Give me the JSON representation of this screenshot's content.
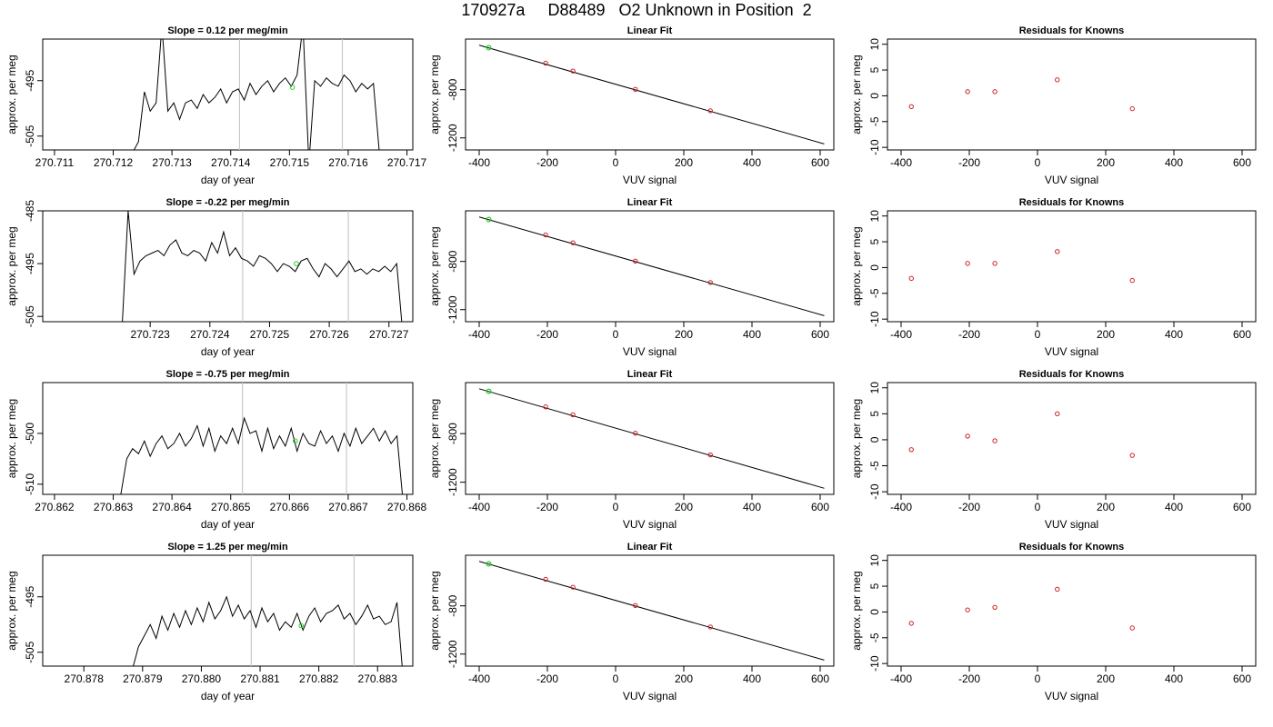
{
  "page_title": "170927a     D88489   O2 Unknown in Position  2",
  "chart_data": [
    {
      "row": 1,
      "panels": [
        {
          "type": "line",
          "title": "Slope =  0.12  per meg/min",
          "xlabel": "day of year",
          "ylabel": "approx. per meg",
          "xlim": [
            270.7108,
            270.7171
          ],
          "ylim": [
            -507.5,
            -487.5
          ],
          "xticks": [
            "270.711",
            "270.712",
            "270.713",
            "270.714",
            "270.715",
            "270.716",
            "270.717"
          ],
          "yticks": [
            "-495",
            "-505"
          ],
          "vlines": [
            270.71415,
            270.7159
          ],
          "marker": [
            270.71505,
            -496.2
          ],
          "x": [
            270.71233,
            270.71243,
            270.71253,
            270.71263,
            270.71273,
            270.71283,
            270.71293,
            270.71303,
            270.71313,
            270.71323,
            270.71333,
            270.71343,
            270.71353,
            270.71363,
            270.71373,
            270.71383,
            270.71393,
            270.71403,
            270.71413,
            270.71423,
            270.71433,
            270.71443,
            270.71453,
            270.71463,
            270.71473,
            270.71483,
            270.71493,
            270.71503,
            270.71513,
            270.71523,
            270.71533,
            270.71543,
            270.71553,
            270.71563,
            270.71573,
            270.71583,
            270.71593,
            270.71603,
            270.71613,
            270.71623,
            270.71633,
            270.71643,
            270.71653
          ],
          "y": [
            -508.0,
            -506.0,
            -497.0,
            -500.5,
            -499.0,
            -485.0,
            -500.5,
            -499.0,
            -502.0,
            -499.0,
            -498.5,
            -500.0,
            -497.5,
            -499.0,
            -498.0,
            -496.5,
            -499.0,
            -497.0,
            -496.5,
            -498.5,
            -495.5,
            -497.5,
            -496.0,
            -495.0,
            -497.0,
            -495.5,
            -494.5,
            -496.0,
            -494.0,
            -485.0,
            -510.0,
            -495.0,
            -496.0,
            -494.5,
            -495.5,
            -496.0,
            -494.0,
            -495.0,
            -497.0,
            -495.5,
            -496.5,
            -495.5,
            -508.0
          ]
        },
        {
          "type": "scatter",
          "title": "Linear Fit",
          "xlabel": "VUV signal",
          "ylabel": "approx. per meg",
          "xlim": [
            -440,
            640
          ],
          "ylim": [
            -1300,
            -380
          ],
          "xticks": [
            "-400",
            "-200",
            "0",
            "200",
            "400",
            "600"
          ],
          "yticks": [
            "-800",
            "-1200"
          ],
          "fit_line": [
            [
              -400,
              -431
            ],
            [
              612,
              -1250
            ]
          ],
          "known_points": [
            [
              -205,
              -580
            ],
            [
              -125,
              -645
            ],
            [
              58,
              -797
            ],
            [
              278,
              -975
            ]
          ],
          "unknown_point": [
            -372,
            -452
          ]
        },
        {
          "type": "scatter",
          "title": "Residuals for Knowns",
          "xlabel": "VUV signal",
          "ylabel": "approx. per meg",
          "xlim": [
            -440,
            640
          ],
          "ylim": [
            -10.5,
            11
          ],
          "xticks": [
            "-400",
            "-200",
            "0",
            "200",
            "400",
            "600"
          ],
          "yticks": [
            "10",
            "5",
            "0",
            "-5",
            "-10"
          ],
          "points": [
            [
              -370,
              -2.1
            ],
            [
              -205,
              0.8
            ],
            [
              -125,
              0.8
            ],
            [
              58,
              3.1
            ],
            [
              278,
              -2.5
            ]
          ]
        }
      ]
    },
    {
      "row": 2,
      "panels": [
        {
          "type": "line",
          "title": "Slope =  -0.22  per meg/min",
          "xlabel": "day of year",
          "ylabel": "approx. per meg",
          "xlim": [
            270.7212,
            270.7274
          ],
          "ylim": [
            -506,
            -485
          ],
          "xticks": [
            "270.723",
            "270.724",
            "270.725",
            "270.726",
            "270.727"
          ],
          "yticks": [
            "-485",
            "-495",
            "-505"
          ],
          "vlines": [
            270.72455,
            270.72632
          ],
          "marker": [
            270.72545,
            -495.0
          ],
          "x": [
            270.72253,
            270.72263,
            270.72273,
            270.72283,
            270.72293,
            270.72303,
            270.72313,
            270.72323,
            270.72333,
            270.72343,
            270.72353,
            270.72363,
            270.72373,
            270.72383,
            270.72393,
            270.72403,
            270.72413,
            270.72423,
            270.72433,
            270.72443,
            270.72453,
            270.72463,
            270.72473,
            270.72483,
            270.72493,
            270.72503,
            270.72513,
            270.72523,
            270.72533,
            270.72543,
            270.72553,
            270.72563,
            270.72573,
            270.72583,
            270.72593,
            270.72603,
            270.72613,
            270.72623,
            270.72633,
            270.72643,
            270.72653,
            270.72663,
            270.72673,
            270.72683,
            270.72693,
            270.72703,
            270.72713,
            270.72723
          ],
          "y": [
            -507.0,
            -485.0,
            -497.0,
            -494.5,
            -493.5,
            -493.0,
            -492.5,
            -493.5,
            -491.5,
            -490.5,
            -493.0,
            -493.5,
            -492.5,
            -493.0,
            -494.5,
            -491.0,
            -493.0,
            -489.0,
            -493.5,
            -492.0,
            -494.0,
            -494.5,
            -495.5,
            -493.5,
            -494.0,
            -495.0,
            -496.5,
            -495.0,
            -495.5,
            -496.5,
            -494.5,
            -494.0,
            -496.0,
            -497.5,
            -495.0,
            -496.0,
            -497.5,
            -496.0,
            -494.5,
            -496.5,
            -496.0,
            -497.0,
            -496.0,
            -496.5,
            -495.5,
            -496.5,
            -495.0,
            -508.0
          ]
        },
        {
          "type": "scatter",
          "title": "Linear Fit",
          "xlabel": "VUV signal",
          "ylabel": "approx. per meg",
          "xlim": [
            -440,
            640
          ],
          "ylim": [
            -1300,
            -380
          ],
          "xticks": [
            "-400",
            "-200",
            "0",
            "200",
            "400",
            "600"
          ],
          "yticks": [
            "-800",
            "-1200"
          ],
          "fit_line": [
            [
              -400,
              -431
            ],
            [
              612,
              -1250
            ]
          ],
          "known_points": [
            [
              -205,
              -580
            ],
            [
              -125,
              -645
            ],
            [
              58,
              -797
            ],
            [
              278,
              -975
            ]
          ],
          "unknown_point": [
            -372,
            -452
          ]
        },
        {
          "type": "scatter",
          "title": "Residuals for Knowns",
          "xlabel": "VUV signal",
          "ylabel": "approx. per meg",
          "xlim": [
            -440,
            640
          ],
          "ylim": [
            -10.5,
            11
          ],
          "xticks": [
            "-400",
            "-200",
            "0",
            "200",
            "400",
            "600"
          ],
          "yticks": [
            "10",
            "5",
            "0",
            "-5",
            "-10"
          ],
          "points": [
            [
              -370,
              -2.1
            ],
            [
              -205,
              0.8
            ],
            [
              -125,
              0.8
            ],
            [
              58,
              3.1
            ],
            [
              278,
              -2.5
            ]
          ]
        }
      ]
    },
    {
      "row": 3,
      "panels": [
        {
          "type": "line",
          "title": "Slope =  -0.75  per meg/min",
          "xlabel": "day of year",
          "ylabel": "approx. per meg",
          "xlim": [
            270.8618,
            270.8681
          ],
          "ylim": [
            -512,
            -490
          ],
          "xticks": [
            "270.862",
            "270.863",
            "270.864",
            "270.865",
            "270.866",
            "270.867",
            "270.868"
          ],
          "yticks": [
            "-500",
            "-510"
          ],
          "vlines": [
            270.8652,
            270.86697
          ],
          "marker": [
            270.8661,
            -501.5
          ],
          "x": [
            270.86313,
            270.86323,
            270.86333,
            270.86343,
            270.86353,
            270.86363,
            270.86373,
            270.86383,
            270.86393,
            270.86403,
            270.86413,
            270.86423,
            270.86433,
            270.86443,
            270.86453,
            270.86463,
            270.86473,
            270.86483,
            270.86493,
            270.86503,
            270.86513,
            270.86523,
            270.86533,
            270.86543,
            270.86553,
            270.86563,
            270.86573,
            270.86583,
            270.86593,
            270.86603,
            270.86613,
            270.86623,
            270.86633,
            270.86643,
            270.86653,
            270.86663,
            270.86673,
            270.86683,
            270.86693,
            270.86703,
            270.86713,
            270.86723,
            270.86733,
            270.86743,
            270.86753,
            270.86763,
            270.86773,
            270.86783,
            270.86793
          ],
          "y": [
            -512.0,
            -505.0,
            -503.0,
            -504.0,
            -501.5,
            -504.5,
            -502.0,
            -500.5,
            -503.0,
            -502.0,
            -500.0,
            -502.5,
            -501.0,
            -498.5,
            -502.5,
            -499.0,
            -503.5,
            -500.5,
            -502.0,
            -499.0,
            -502.0,
            -497.0,
            -500.0,
            -499.5,
            -503.5,
            -499.0,
            -503.0,
            -500.5,
            -502.5,
            -499.0,
            -503.5,
            -500.0,
            -502.0,
            -502.5,
            -499.5,
            -502.0,
            -500.5,
            -503.5,
            -500.0,
            -502.5,
            -499.0,
            -502.0,
            -500.5,
            -499.0,
            -501.5,
            -499.5,
            -502.0,
            -500.5,
            -513.0
          ]
        },
        {
          "type": "scatter",
          "title": "Linear Fit",
          "xlabel": "VUV signal",
          "ylabel": "approx. per meg",
          "xlim": [
            -440,
            640
          ],
          "ylim": [
            -1300,
            -380
          ],
          "xticks": [
            "-400",
            "-200",
            "0",
            "200",
            "400",
            "600"
          ],
          "yticks": [
            "-800",
            "-1200"
          ],
          "fit_line": [
            [
              -400,
              -431
            ],
            [
              612,
              -1250
            ]
          ],
          "known_points": [
            [
              -205,
              -580
            ],
            [
              -125,
              -645
            ],
            [
              58,
              -797
            ],
            [
              278,
              -975
            ]
          ],
          "unknown_point": [
            -372,
            -452
          ]
        },
        {
          "type": "scatter",
          "title": "Residuals for Knowns",
          "xlabel": "VUV signal",
          "ylabel": "approx. per meg",
          "xlim": [
            -440,
            640
          ],
          "ylim": [
            -10.5,
            11
          ],
          "xticks": [
            "-400",
            "-200",
            "0",
            "200",
            "400",
            "600"
          ],
          "yticks": [
            "10",
            "5",
            "0",
            "-5",
            "-10"
          ],
          "points": [
            [
              -370,
              -1.9
            ],
            [
              -205,
              0.7
            ],
            [
              -125,
              -0.2
            ],
            [
              58,
              5.0
            ],
            [
              278,
              -3.0
            ]
          ]
        }
      ]
    },
    {
      "row": 4,
      "panels": [
        {
          "type": "line",
          "title": "Slope =  1.25  per meg/min",
          "xlabel": "day of year",
          "ylabel": "approx. per meg",
          "xlim": [
            270.8773,
            270.8836
          ],
          "ylim": [
            -507.5,
            -487.5
          ],
          "xticks": [
            "270.878",
            "270.879",
            "270.880",
            "270.881",
            "270.882",
            "270.883"
          ],
          "yticks": [
            "-495",
            "-505"
          ],
          "vlines": [
            270.88085,
            270.8826
          ],
          "marker": [
            270.8817,
            -500.2
          ],
          "x": [
            270.87883,
            270.87893,
            270.87903,
            270.87913,
            270.87923,
            270.87933,
            270.87943,
            270.87953,
            270.87963,
            270.87973,
            270.87983,
            270.87993,
            270.88003,
            270.88013,
            270.88023,
            270.88033,
            270.88043,
            270.88053,
            270.88063,
            270.88073,
            270.88083,
            270.88093,
            270.88103,
            270.88113,
            270.88123,
            270.88133,
            270.88143,
            270.88153,
            270.88163,
            270.88173,
            270.88183,
            270.88193,
            270.88203,
            270.88213,
            270.88223,
            270.88233,
            270.88243,
            270.88253,
            270.88263,
            270.88273,
            270.88283,
            270.88293,
            270.88303,
            270.88313,
            270.88323,
            270.88333,
            270.88343
          ],
          "y": [
            -508.0,
            -504.0,
            -502.0,
            -500.0,
            -502.5,
            -498.5,
            -501.0,
            -498.0,
            -500.5,
            -497.5,
            -500.0,
            -497.0,
            -499.5,
            -496.0,
            -499.0,
            -497.5,
            -495.0,
            -498.5,
            -496.5,
            -499.0,
            -497.5,
            -500.5,
            -497.0,
            -499.5,
            -498.0,
            -501.0,
            -499.5,
            -500.5,
            -498.0,
            -501.0,
            -498.5,
            -497.0,
            -499.5,
            -498.0,
            -497.5,
            -496.5,
            -499.0,
            -498.0,
            -500.0,
            -498.5,
            -496.5,
            -499.0,
            -498.5,
            -500.0,
            -499.5,
            -496.0,
            -509.0
          ]
        },
        {
          "type": "scatter",
          "title": "Linear Fit",
          "xlabel": "VUV signal",
          "ylabel": "approx. per meg",
          "xlim": [
            -440,
            640
          ],
          "ylim": [
            -1300,
            -380
          ],
          "xticks": [
            "-400",
            "-200",
            "0",
            "200",
            "400",
            "600"
          ],
          "yticks": [
            "-800",
            "-1200"
          ],
          "fit_line": [
            [
              -400,
              -431
            ],
            [
              612,
              -1250
            ]
          ],
          "known_points": [
            [
              -205,
              -580
            ],
            [
              -125,
              -645
            ],
            [
              58,
              -797
            ],
            [
              278,
              -975
            ]
          ],
          "unknown_point": [
            -372,
            -452
          ]
        },
        {
          "type": "scatter",
          "title": "Residuals for Knowns",
          "xlabel": "VUV signal",
          "ylabel": "approx. per meg",
          "xlim": [
            -440,
            640
          ],
          "ylim": [
            -10.5,
            11
          ],
          "xticks": [
            "-400",
            "-200",
            "0",
            "200",
            "400",
            "600"
          ],
          "yticks": [
            "10",
            "5",
            "0",
            "-5",
            "-10"
          ],
          "points": [
            [
              -370,
              -2.2
            ],
            [
              -205,
              0.4
            ],
            [
              -125,
              0.9
            ],
            [
              58,
              4.4
            ],
            [
              278,
              -3.1
            ]
          ]
        }
      ]
    }
  ],
  "colors": {
    "trace": "#000000",
    "fit_line": "#000000",
    "vline": "#c8c8c8",
    "known_point": "#cc2222",
    "unknown_point": "#22cc22"
  }
}
